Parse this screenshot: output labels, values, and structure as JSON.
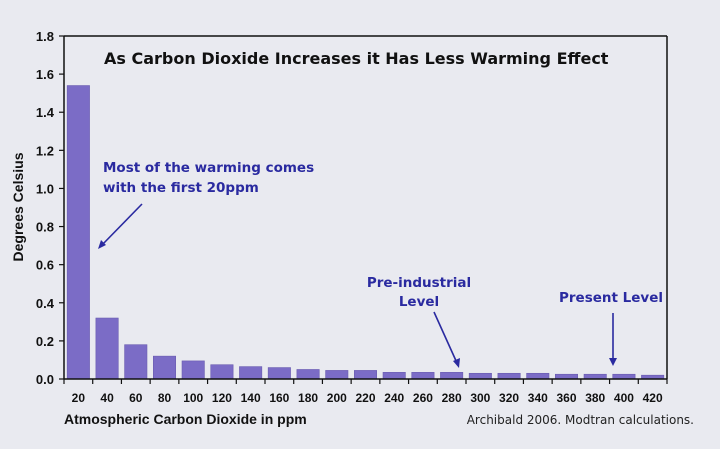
{
  "chart_data": {
    "type": "bar",
    "title": "As Carbon Dioxide Increases it Has Less Warming Effect",
    "xlabel": "Atmospheric Carbon Dioxide in ppm",
    "ylabel": "Degrees Celsius",
    "ylim": [
      0,
      1.8
    ],
    "yticks": [
      "0.0",
      "0.2",
      "0.4",
      "0.6",
      "0.8",
      "1.0",
      "1.2",
      "1.4",
      "1.6",
      "1.8"
    ],
    "categories": [
      "20",
      "40",
      "60",
      "80",
      "100",
      "120",
      "140",
      "160",
      "180",
      "200",
      "220",
      "240",
      "260",
      "280",
      "300",
      "320",
      "340",
      "360",
      "380",
      "400",
      "420"
    ],
    "values": [
      1.54,
      0.32,
      0.18,
      0.12,
      0.095,
      0.075,
      0.065,
      0.06,
      0.05,
      0.045,
      0.045,
      0.035,
      0.035,
      0.035,
      0.03,
      0.03,
      0.03,
      0.025,
      0.025,
      0.025,
      0.02
    ],
    "bar_color": "#7b6cc6",
    "grid": false,
    "annotations": [
      {
        "lines": [
          "Most of the warming comes",
          "with the first 20ppm"
        ],
        "points_to": "20"
      },
      {
        "lines": [
          "Pre-industrial",
          "Level"
        ],
        "points_to": "280"
      },
      {
        "lines": [
          "Present Level"
        ],
        "points_to": "380"
      }
    ],
    "annotation_color": "#2a2aa0",
    "source": "Archibald 2006. Modtran calculations."
  }
}
